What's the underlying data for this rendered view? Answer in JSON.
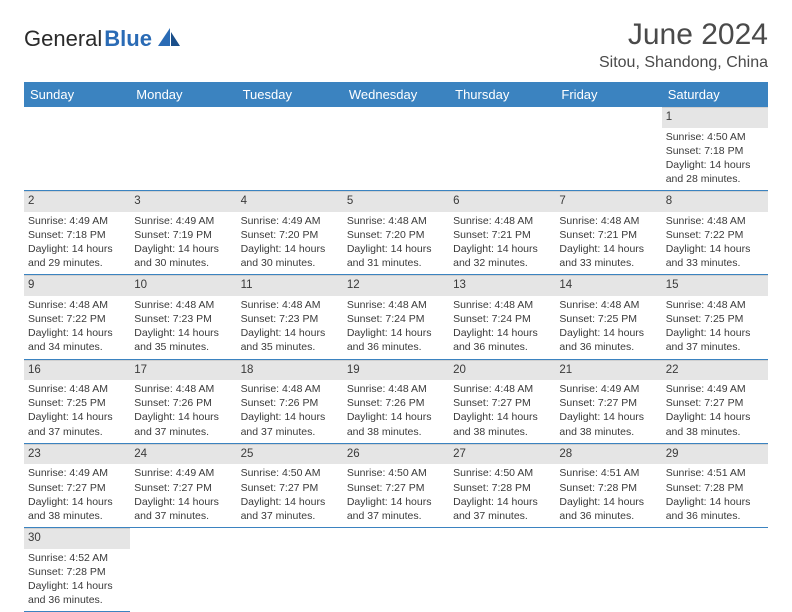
{
  "logo": {
    "text1": "General",
    "text2": "Blue"
  },
  "title": "June 2024",
  "location": "Sitou, Shandong, China",
  "header_color": "#3b83c0",
  "daynum_bg": "#e5e5e5",
  "weekdays": [
    "Sunday",
    "Monday",
    "Tuesday",
    "Wednesday",
    "Thursday",
    "Friday",
    "Saturday"
  ],
  "weeks": [
    [
      null,
      null,
      null,
      null,
      null,
      null,
      {
        "n": "1",
        "sr": "4:50 AM",
        "ss": "7:18 PM",
        "dl": "14 hours and 28 minutes."
      }
    ],
    [
      {
        "n": "2",
        "sr": "4:49 AM",
        "ss": "7:18 PM",
        "dl": "14 hours and 29 minutes."
      },
      {
        "n": "3",
        "sr": "4:49 AM",
        "ss": "7:19 PM",
        "dl": "14 hours and 30 minutes."
      },
      {
        "n": "4",
        "sr": "4:49 AM",
        "ss": "7:20 PM",
        "dl": "14 hours and 30 minutes."
      },
      {
        "n": "5",
        "sr": "4:48 AM",
        "ss": "7:20 PM",
        "dl": "14 hours and 31 minutes."
      },
      {
        "n": "6",
        "sr": "4:48 AM",
        "ss": "7:21 PM",
        "dl": "14 hours and 32 minutes."
      },
      {
        "n": "7",
        "sr": "4:48 AM",
        "ss": "7:21 PM",
        "dl": "14 hours and 33 minutes."
      },
      {
        "n": "8",
        "sr": "4:48 AM",
        "ss": "7:22 PM",
        "dl": "14 hours and 33 minutes."
      }
    ],
    [
      {
        "n": "9",
        "sr": "4:48 AM",
        "ss": "7:22 PM",
        "dl": "14 hours and 34 minutes."
      },
      {
        "n": "10",
        "sr": "4:48 AM",
        "ss": "7:23 PM",
        "dl": "14 hours and 35 minutes."
      },
      {
        "n": "11",
        "sr": "4:48 AM",
        "ss": "7:23 PM",
        "dl": "14 hours and 35 minutes."
      },
      {
        "n": "12",
        "sr": "4:48 AM",
        "ss": "7:24 PM",
        "dl": "14 hours and 36 minutes."
      },
      {
        "n": "13",
        "sr": "4:48 AM",
        "ss": "7:24 PM",
        "dl": "14 hours and 36 minutes."
      },
      {
        "n": "14",
        "sr": "4:48 AM",
        "ss": "7:25 PM",
        "dl": "14 hours and 36 minutes."
      },
      {
        "n": "15",
        "sr": "4:48 AM",
        "ss": "7:25 PM",
        "dl": "14 hours and 37 minutes."
      }
    ],
    [
      {
        "n": "16",
        "sr": "4:48 AM",
        "ss": "7:25 PM",
        "dl": "14 hours and 37 minutes."
      },
      {
        "n": "17",
        "sr": "4:48 AM",
        "ss": "7:26 PM",
        "dl": "14 hours and 37 minutes."
      },
      {
        "n": "18",
        "sr": "4:48 AM",
        "ss": "7:26 PM",
        "dl": "14 hours and 37 minutes."
      },
      {
        "n": "19",
        "sr": "4:48 AM",
        "ss": "7:26 PM",
        "dl": "14 hours and 38 minutes."
      },
      {
        "n": "20",
        "sr": "4:48 AM",
        "ss": "7:27 PM",
        "dl": "14 hours and 38 minutes."
      },
      {
        "n": "21",
        "sr": "4:49 AM",
        "ss": "7:27 PM",
        "dl": "14 hours and 38 minutes."
      },
      {
        "n": "22",
        "sr": "4:49 AM",
        "ss": "7:27 PM",
        "dl": "14 hours and 38 minutes."
      }
    ],
    [
      {
        "n": "23",
        "sr": "4:49 AM",
        "ss": "7:27 PM",
        "dl": "14 hours and 38 minutes."
      },
      {
        "n": "24",
        "sr": "4:49 AM",
        "ss": "7:27 PM",
        "dl": "14 hours and 37 minutes."
      },
      {
        "n": "25",
        "sr": "4:50 AM",
        "ss": "7:27 PM",
        "dl": "14 hours and 37 minutes."
      },
      {
        "n": "26",
        "sr": "4:50 AM",
        "ss": "7:27 PM",
        "dl": "14 hours and 37 minutes."
      },
      {
        "n": "27",
        "sr": "4:50 AM",
        "ss": "7:28 PM",
        "dl": "14 hours and 37 minutes."
      },
      {
        "n": "28",
        "sr": "4:51 AM",
        "ss": "7:28 PM",
        "dl": "14 hours and 36 minutes."
      },
      {
        "n": "29",
        "sr": "4:51 AM",
        "ss": "7:28 PM",
        "dl": "14 hours and 36 minutes."
      }
    ],
    [
      {
        "n": "30",
        "sr": "4:52 AM",
        "ss": "7:28 PM",
        "dl": "14 hours and 36 minutes."
      },
      null,
      null,
      null,
      null,
      null,
      null
    ]
  ],
  "labels": {
    "sunrise": "Sunrise:",
    "sunset": "Sunset:",
    "daylight": "Daylight:"
  }
}
